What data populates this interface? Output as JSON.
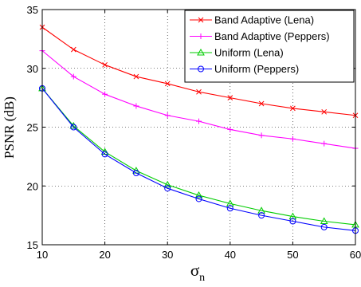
{
  "chart_data": {
    "type": "line",
    "xlabel": "σ",
    "xlabel_subscript": "n",
    "ylabel": "PSNR (dB)",
    "xlim": [
      10,
      60
    ],
    "ylim": [
      15,
      35
    ],
    "xticks": [
      10,
      20,
      30,
      40,
      50,
      60
    ],
    "yticks": [
      15,
      20,
      25,
      30,
      35
    ],
    "grid": true,
    "legend_position": "top-right",
    "x": [
      10,
      15,
      20,
      25,
      30,
      35,
      40,
      45,
      50,
      55,
      60
    ],
    "series": [
      {
        "name": "Band Adaptive (Lena)",
        "color": "#ff0000",
        "marker": "x",
        "values": [
          33.5,
          31.6,
          30.3,
          29.3,
          28.7,
          28.0,
          27.5,
          27.0,
          26.6,
          26.3,
          26.0
        ]
      },
      {
        "name": "Band Adaptive (Peppers)",
        "color": "#ff00ff",
        "marker": "plus",
        "values": [
          31.5,
          29.3,
          27.8,
          26.8,
          26.0,
          25.5,
          24.8,
          24.3,
          24.0,
          23.6,
          23.2
        ]
      },
      {
        "name": "Uniform (Lena)",
        "color": "#00cc00",
        "marker": "triangle",
        "values": [
          28.3,
          25.1,
          22.9,
          21.3,
          20.1,
          19.2,
          18.5,
          17.9,
          17.4,
          17.0,
          16.7
        ]
      },
      {
        "name": "Uniform (Peppers)",
        "color": "#0000ff",
        "marker": "circle",
        "values": [
          28.3,
          25.0,
          22.7,
          21.1,
          19.8,
          18.9,
          18.1,
          17.5,
          17.0,
          16.5,
          16.2
        ]
      }
    ]
  }
}
